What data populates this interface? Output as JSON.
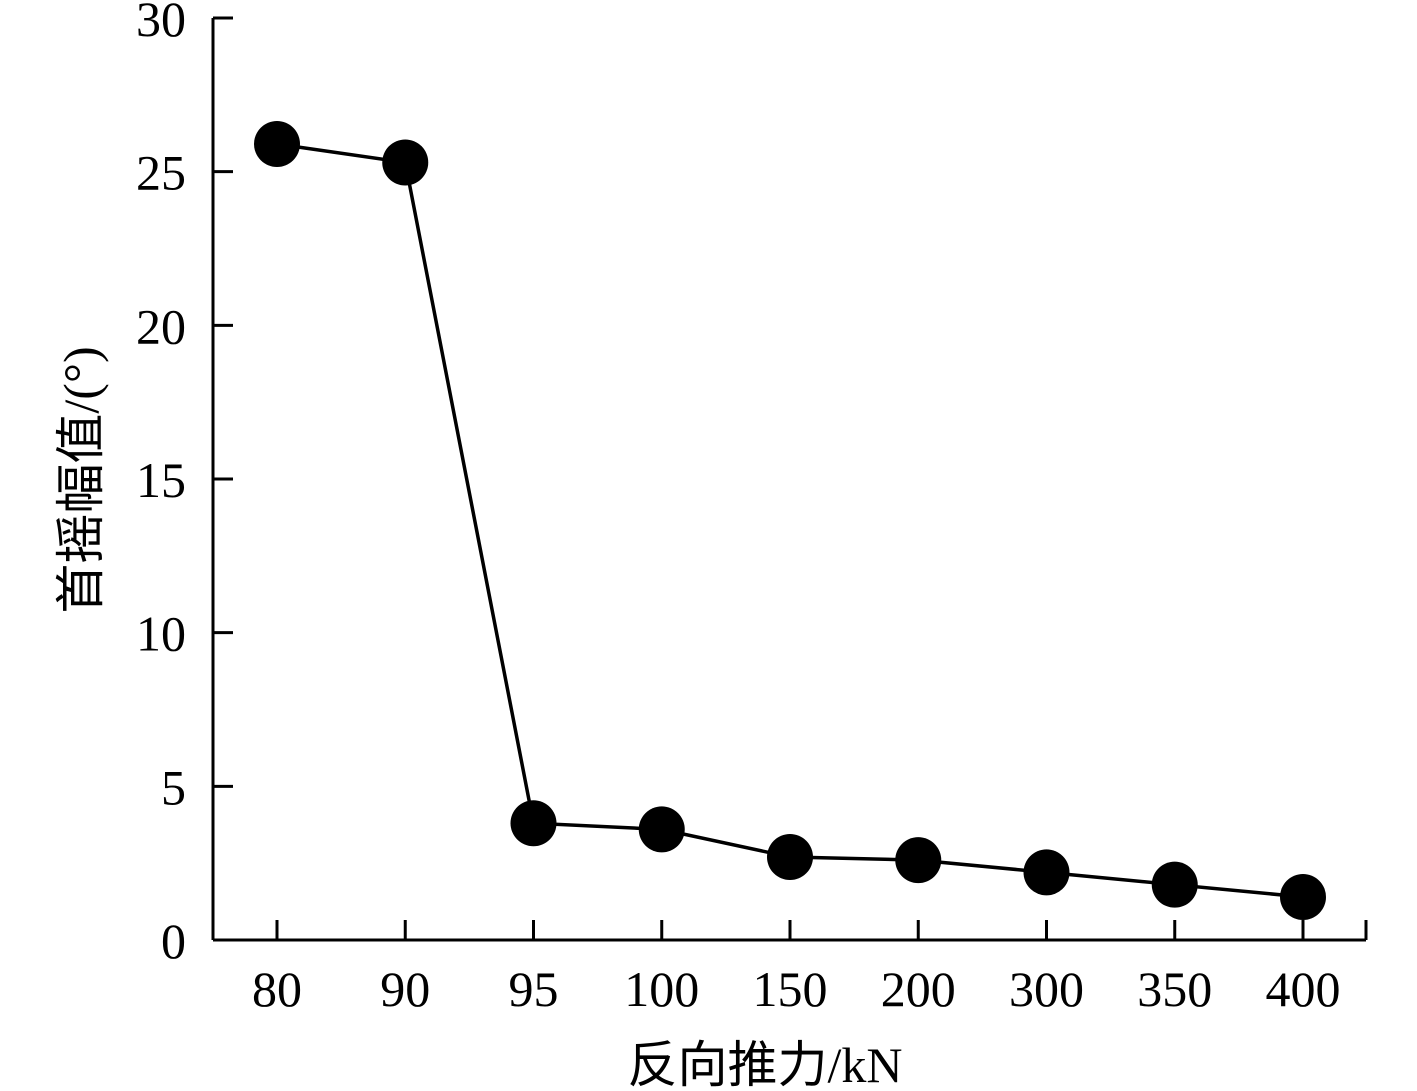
{
  "chart_data": {
    "type": "line",
    "categories": [
      "80",
      "90",
      "95",
      "100",
      "150",
      "200",
      "300",
      "350",
      "400"
    ],
    "series": [
      {
        "values": [
          25.9,
          25.3,
          3.8,
          3.6,
          2.7,
          2.6,
          2.2,
          1.8,
          1.4
        ]
      }
    ],
    "xlabel": "反向推力/kN",
    "ylabel": "首摇幅值/(°)",
    "ylim": [
      0,
      30
    ],
    "yticks": [
      0,
      5,
      10,
      15,
      20,
      25,
      30
    ],
    "grid": false,
    "legend": "none",
    "colors": {
      "line": "#000000",
      "marker": "#000000"
    }
  }
}
